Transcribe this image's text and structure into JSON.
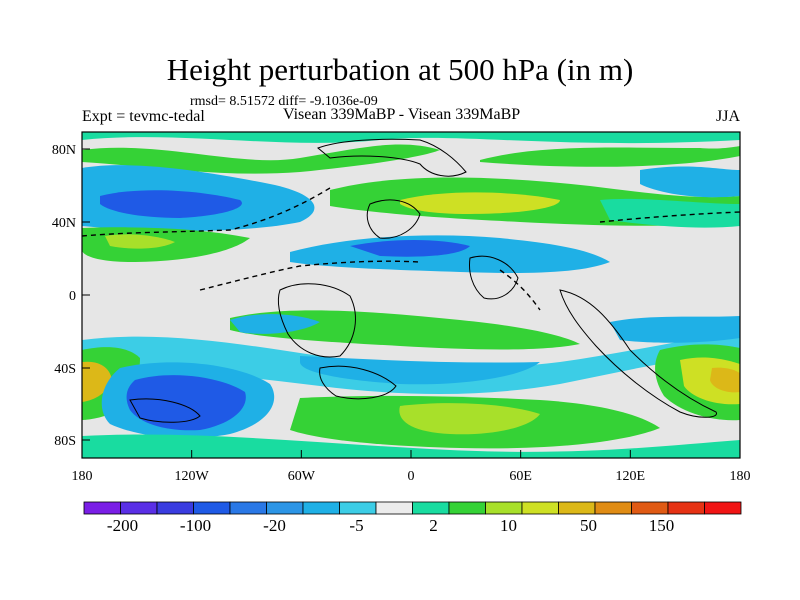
{
  "title": "Height perturbation at 500 hPa (in m)",
  "subtitle": "rmsd= 8.51572 diff= -9.1036e-09",
  "left_string": "Expt = tevmc-tedal",
  "center_string": "Visean 339MaBP - Visean 339MaBP",
  "right_string": "JJA",
  "map": {
    "projection": "cylindrical-equidistant",
    "lon_range": [
      -180,
      180
    ],
    "lat_range": [
      -90,
      90
    ],
    "x_tick_labels": [
      "180",
      "120W",
      "60W",
      "0",
      "60E",
      "120E",
      "180"
    ],
    "y_tick_labels": [
      "80N",
      "40N",
      "0",
      "40S",
      "80S"
    ],
    "colors": {
      "background": "#e6e6e6",
      "coastline": "#000000"
    }
  },
  "colorbar": {
    "colors": [
      "#7a1ee6",
      "#5a2fe6",
      "#3a3ce0",
      "#1f5ae6",
      "#2a78e6",
      "#2c95e6",
      "#1fb0e6",
      "#3ccde6",
      "#ececec",
      "#19dca0",
      "#35d236",
      "#a8e02a",
      "#cee024",
      "#dcb818",
      "#e08c14",
      "#e05a14",
      "#e63214",
      "#f01414"
    ],
    "labels": [
      "-200",
      "-100",
      "-20",
      "-5",
      "2",
      "10",
      "50",
      "150"
    ]
  },
  "palette": {
    "blue_mid": "#1fb0e6",
    "blue_deep": "#1f5ae6",
    "green": "#35d236",
    "yellowgreen": "#a8e02a",
    "yellow": "#cee024",
    "orange": "#dcb818",
    "teal": "#19dca0",
    "cyan": "#3ccde6"
  }
}
